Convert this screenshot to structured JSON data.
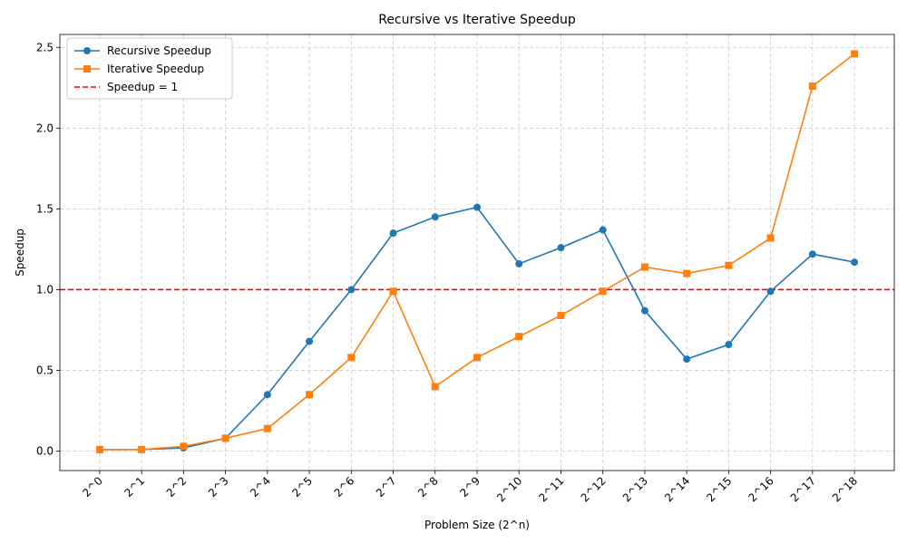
{
  "chart_data": {
    "type": "line",
    "title": "Recursive vs Iterative Speedup",
    "xlabel": "Problem Size (2^n)",
    "ylabel": "Speedup",
    "categories": [
      "2^0",
      "2^1",
      "2^2",
      "2^3",
      "2^4",
      "2^5",
      "2^6",
      "2^7",
      "2^8",
      "2^9",
      "2^10",
      "2^11",
      "2^12",
      "2^13",
      "2^14",
      "2^15",
      "2^16",
      "2^17",
      "2^18"
    ],
    "ylim": [
      -0.12,
      2.58
    ],
    "yticks": [
      0.0,
      0.5,
      1.0,
      1.5,
      2.0,
      2.5
    ],
    "ytick_labels": [
      "0.0",
      "0.5",
      "1.0",
      "1.5",
      "2.0",
      "2.5"
    ],
    "grid": true,
    "legend_position": "upper-left",
    "series": [
      {
        "name": "Recursive Speedup",
        "color": "#1f77b4",
        "marker": "circle",
        "values": [
          0.01,
          0.01,
          0.02,
          0.08,
          0.35,
          0.68,
          1.0,
          1.35,
          1.45,
          1.51,
          1.16,
          1.26,
          1.37,
          0.87,
          0.57,
          0.66,
          0.99,
          1.22,
          1.17
        ]
      },
      {
        "name": "Iterative Speedup",
        "color": "#ff7f0e",
        "marker": "square",
        "values": [
          0.01,
          0.01,
          0.03,
          0.08,
          0.14,
          0.35,
          0.58,
          0.99,
          0.4,
          0.58,
          0.71,
          0.84,
          0.99,
          1.14,
          1.1,
          1.15,
          1.32,
          2.26,
          2.46
        ]
      }
    ],
    "reference_line": {
      "name": "Speedup = 1",
      "value": 1.0,
      "color": "#ff0000",
      "style": "dashed"
    }
  }
}
